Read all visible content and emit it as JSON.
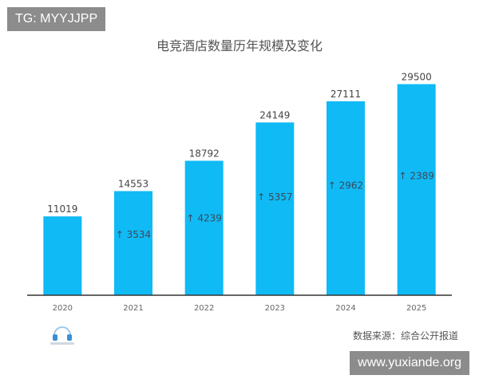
{
  "tag": "TG: MYYJJPP",
  "watermark": "www.yuxiande.org",
  "source": "数据来源：综合公开报道",
  "logo_icon": "headphones-logo-icon",
  "colors": {
    "bar": "#10baf5",
    "axis": "#333333"
  },
  "chart_data": {
    "type": "bar",
    "title": "电竞酒店数量历年规模及变化",
    "xlabel": "",
    "ylabel": "",
    "categories": [
      "2020",
      "2021",
      "2022",
      "2023",
      "2024",
      "2025"
    ],
    "values": [
      11019,
      14553,
      18792,
      24149,
      27111,
      29500
    ],
    "increments": [
      null,
      "↑ 3534",
      "↑ 4239",
      "↑ 5357",
      "↑ 2962",
      "↑ 2389"
    ],
    "ylim": [
      0,
      31000
    ],
    "grid": false,
    "legend": "none"
  }
}
